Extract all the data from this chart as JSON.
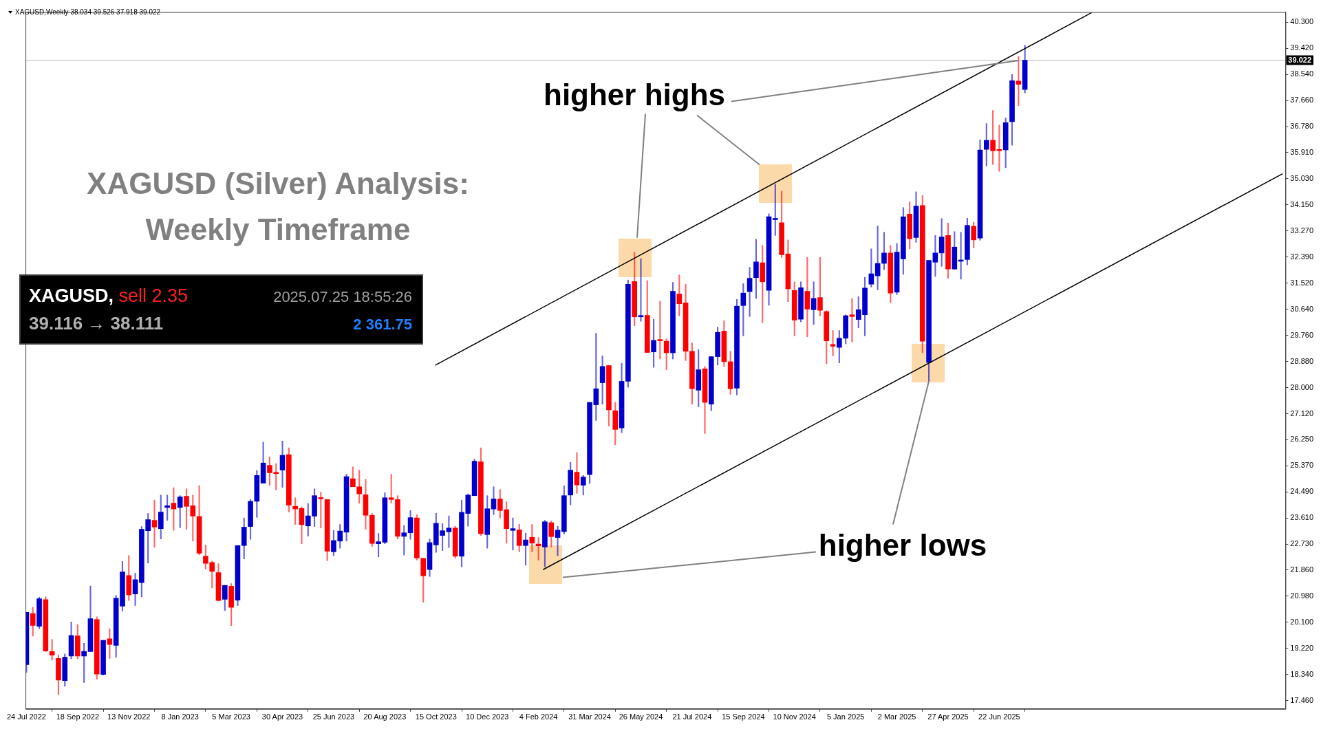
{
  "chart_data": {
    "type": "candlestick",
    "title": "XAGUSD (Silver) Analysis: Weekly Timeframe",
    "subtitle": "XAGUSD,Weekly 38.034 39.526 37.918 39.022",
    "annotations": [
      "XAGUSD,",
      "sell 2.35",
      "2025.07.25 18:55:26",
      "39.116 → 38.111",
      "2 361.75",
      {
        "text": "higher highs",
        "x": "2025-07-13",
        "y": 39.0
      },
      {
        "text": "higher lows",
        "x": "2025-04-06",
        "y": 28.21
      }
    ],
    "x": [
      "2022-07-24",
      "2022-07-31",
      "2022-08-07",
      "2022-08-14",
      "2022-08-21",
      "2022-08-28",
      "2022-09-04",
      "2022-09-11",
      "2022-09-18",
      "2022-09-25",
      "2022-10-02",
      "2022-10-09",
      "2022-10-16",
      "2022-10-23",
      "2022-10-30",
      "2022-11-06",
      "2022-11-13",
      "2022-11-20",
      "2022-11-27",
      "2022-12-04",
      "2022-12-11",
      "2022-12-18",
      "2022-12-25",
      "2023-01-01",
      "2023-01-08",
      "2023-01-15",
      "2023-01-22",
      "2023-01-29",
      "2023-02-05",
      "2023-02-12",
      "2023-02-19",
      "2023-02-26",
      "2023-03-05",
      "2023-03-12",
      "2023-03-19",
      "2023-03-26",
      "2023-04-02",
      "2023-04-09",
      "2023-04-16",
      "2023-04-23",
      "2023-04-30",
      "2023-05-07",
      "2023-05-14",
      "2023-05-21",
      "2023-05-28",
      "2023-06-04",
      "2023-06-11",
      "2023-06-18",
      "2023-06-25",
      "2023-07-02",
      "2023-07-09",
      "2023-07-16",
      "2023-07-23",
      "2023-07-30",
      "2023-08-06",
      "2023-08-13",
      "2023-08-20",
      "2023-08-27",
      "2023-09-03",
      "2023-09-10",
      "2023-09-17",
      "2023-09-24",
      "2023-10-01",
      "2023-10-08",
      "2023-10-15",
      "2023-10-22",
      "2023-10-29",
      "2023-11-05",
      "2023-11-12",
      "2023-11-19",
      "2023-11-26",
      "2023-12-03",
      "2023-12-10",
      "2023-12-17",
      "2023-12-24",
      "2023-12-31",
      "2024-01-07",
      "2024-01-14",
      "2024-01-21",
      "2024-01-28",
      "2024-02-04",
      "2024-02-11",
      "2024-02-18",
      "2024-02-25",
      "2024-03-03",
      "2024-03-10",
      "2024-03-17",
      "2024-03-24",
      "2024-03-31",
      "2024-04-07",
      "2024-04-14",
      "2024-04-21",
      "2024-04-28",
      "2024-05-05",
      "2024-05-12",
      "2024-05-19",
      "2024-05-26",
      "2024-06-02",
      "2024-06-09",
      "2024-06-16",
      "2024-06-23",
      "2024-06-30",
      "2024-07-07",
      "2024-07-14",
      "2024-07-21",
      "2024-07-28",
      "2024-08-04",
      "2024-08-11",
      "2024-08-18",
      "2024-08-25",
      "2024-09-01",
      "2024-09-08",
      "2024-09-15",
      "2024-09-22",
      "2024-09-29",
      "2024-10-06",
      "2024-10-13",
      "2024-10-20",
      "2024-10-27",
      "2024-11-03",
      "2024-11-10",
      "2024-11-17",
      "2024-11-24",
      "2024-12-01",
      "2024-12-08",
      "2024-12-15",
      "2024-12-22",
      "2024-12-29",
      "2025-01-05",
      "2025-01-12",
      "2025-01-19",
      "2025-01-26",
      "2025-02-02",
      "2025-02-09",
      "2025-02-16",
      "2025-02-23",
      "2025-03-02",
      "2025-03-09",
      "2025-03-16",
      "2025-03-23",
      "2025-03-30",
      "2025-04-06",
      "2025-04-13",
      "2025-04-20",
      "2025-04-27",
      "2025-05-04",
      "2025-05-11",
      "2025-05-18",
      "2025-05-25",
      "2025-06-01",
      "2025-06-08",
      "2025-06-15",
      "2025-06-22",
      "2025-06-29",
      "2025-07-06",
      "2025-07-13",
      "2025-07-20"
    ],
    "ohlc": [
      [
        18.67,
        20.43,
        18.41,
        20.43
      ],
      [
        20.39,
        20.6,
        19.63,
        19.99
      ],
      [
        19.96,
        20.94,
        19.88,
        20.89
      ],
      [
        20.86,
        20.96,
        19.11,
        19.13
      ],
      [
        19.11,
        19.52,
        18.82,
        18.99
      ],
      [
        18.88,
        18.99,
        17.65,
        18.15
      ],
      [
        18.13,
        19.03,
        17.94,
        18.92
      ],
      [
        18.96,
        20.11,
        18.87,
        19.65
      ],
      [
        19.64,
        20.02,
        18.87,
        18.96
      ],
      [
        18.96,
        19.39,
        18.07,
        19.12
      ],
      [
        19.11,
        21.32,
        19.11,
        20.22
      ],
      [
        20.19,
        20.28,
        18.18,
        18.35
      ],
      [
        18.34,
        19.49,
        18.32,
        19.49
      ],
      [
        19.54,
        19.88,
        18.88,
        19.35
      ],
      [
        19.32,
        21.0,
        18.92,
        20.91
      ],
      [
        20.64,
        22.15,
        20.47,
        21.79
      ],
      [
        21.67,
        22.34,
        20.83,
        21.02
      ],
      [
        21.05,
        21.75,
        20.66,
        21.53
      ],
      [
        21.43,
        23.32,
        20.95,
        23.23
      ],
      [
        23.18,
        23.76,
        22.09,
        23.55
      ],
      [
        23.53,
        24.21,
        22.62,
        23.3
      ],
      [
        23.25,
        24.38,
        22.9,
        23.81
      ],
      [
        23.96,
        24.38,
        23.53,
        24.02
      ],
      [
        24.11,
        24.63,
        23.19,
        23.91
      ],
      [
        23.96,
        24.36,
        23.28,
        24.32
      ],
      [
        24.34,
        24.59,
        23.23,
        24.0
      ],
      [
        24.02,
        24.38,
        22.83,
        23.67
      ],
      [
        23.66,
        24.7,
        22.37,
        22.42
      ],
      [
        22.32,
        22.7,
        21.89,
        22.08
      ],
      [
        22.11,
        22.16,
        21.25,
        21.81
      ],
      [
        21.77,
        22.07,
        20.81,
        20.83
      ],
      [
        20.87,
        21.34,
        20.49,
        21.34
      ],
      [
        21.31,
        21.4,
        19.98,
        20.6
      ],
      [
        20.84,
        22.68,
        20.66,
        22.68
      ],
      [
        22.68,
        23.61,
        22.23,
        23.3
      ],
      [
        23.32,
        24.23,
        22.89,
        24.17
      ],
      [
        24.17,
        25.21,
        23.63,
        25.04
      ],
      [
        24.78,
        26.16,
        24.78,
        25.46
      ],
      [
        25.38,
        25.67,
        24.7,
        25.13
      ],
      [
        25.13,
        25.44,
        24.55,
        25.1
      ],
      [
        25.22,
        26.2,
        24.64,
        25.72
      ],
      [
        25.74,
        25.97,
        23.81,
        24.04
      ],
      [
        24.0,
        24.29,
        23.39,
        23.91
      ],
      [
        23.93,
        23.98,
        22.74,
        23.38
      ],
      [
        23.34,
        24.1,
        23.0,
        23.68
      ],
      [
        23.67,
        24.59,
        23.32,
        24.36
      ],
      [
        24.29,
        24.48,
        23.27,
        24.25
      ],
      [
        24.23,
        24.23,
        22.17,
        22.49
      ],
      [
        22.47,
        23.19,
        22.34,
        22.85
      ],
      [
        22.83,
        23.39,
        22.59,
        23.17
      ],
      [
        23.13,
        25.08,
        22.83,
        25.0
      ],
      [
        24.93,
        25.33,
        24.66,
        24.66
      ],
      [
        24.66,
        25.22,
        24.1,
        24.42
      ],
      [
        24.39,
        24.91,
        23.23,
        23.7
      ],
      [
        23.7,
        23.76,
        22.65,
        22.75
      ],
      [
        22.74,
        23.09,
        22.3,
        22.81
      ],
      [
        22.79,
        24.46,
        22.74,
        24.29
      ],
      [
        24.29,
        25.08,
        24.11,
        24.23
      ],
      [
        24.23,
        24.36,
        22.9,
        22.99
      ],
      [
        22.99,
        23.36,
        22.36,
        23.11
      ],
      [
        23.11,
        23.86,
        22.89,
        23.62
      ],
      [
        23.61,
        23.72,
        22.19,
        22.26
      ],
      [
        22.25,
        22.25,
        20.77,
        21.66
      ],
      [
        21.87,
        22.9,
        21.64,
        22.78
      ],
      [
        22.7,
        23.77,
        22.45,
        23.43
      ],
      [
        23.02,
        23.42,
        22.51,
        23.18
      ],
      [
        23.14,
        23.68,
        22.61,
        23.27
      ],
      [
        23.27,
        23.33,
        22.26,
        22.32
      ],
      [
        22.32,
        24.21,
        21.96,
        23.8
      ],
      [
        23.76,
        24.42,
        23.33,
        24.38
      ],
      [
        24.36,
        25.59,
        24.36,
        25.52
      ],
      [
        25.5,
        25.97,
        23.02,
        23.08
      ],
      [
        23.05,
        24.36,
        22.59,
        23.92
      ],
      [
        23.91,
        24.66,
        23.72,
        24.25
      ],
      [
        24.25,
        24.57,
        23.61,
        23.86
      ],
      [
        23.89,
        24.16,
        22.76,
        23.25
      ],
      [
        23.19,
        23.61,
        22.53,
        23.25
      ],
      [
        23.21,
        23.4,
        22.47,
        22.68
      ],
      [
        22.68,
        23.1,
        22.02,
        22.87
      ],
      [
        22.96,
        23.39,
        22.47,
        22.76
      ],
      [
        22.73,
        22.95,
        22.19,
        22.67
      ],
      [
        22.63,
        23.53,
        21.96,
        23.48
      ],
      [
        23.45,
        23.51,
        22.63,
        22.98
      ],
      [
        22.95,
        23.33,
        22.34,
        23.2
      ],
      [
        23.15,
        24.69,
        23.07,
        24.36
      ],
      [
        24.38,
        25.48,
        24.05,
        25.22
      ],
      [
        25.15,
        25.81,
        24.44,
        24.72
      ],
      [
        24.71,
        25.04,
        24.38,
        24.99
      ],
      [
        25.07,
        27.5,
        24.77,
        27.5
      ],
      [
        27.42,
        29.83,
        26.89,
        27.96
      ],
      [
        28.16,
        29.07,
        27.44,
        28.71
      ],
      [
        28.74,
        28.74,
        26.7,
        27.25
      ],
      [
        27.22,
        27.5,
        26.07,
        26.59
      ],
      [
        26.64,
        28.82,
        26.48,
        28.21
      ],
      [
        28.21,
        31.62,
        28.01,
        31.48
      ],
      [
        31.57,
        32.56,
        30.08,
        30.38
      ],
      [
        30.38,
        32.34,
        30.23,
        30.41
      ],
      [
        30.43,
        31.6,
        29.18,
        29.18
      ],
      [
        29.2,
        30.3,
        28.68,
        29.59
      ],
      [
        29.59,
        30.91,
        28.96,
        29.57
      ],
      [
        29.56,
        29.64,
        28.6,
        29.17
      ],
      [
        29.17,
        31.54,
        28.96,
        31.24
      ],
      [
        31.15,
        31.79,
        30.41,
        30.82
      ],
      [
        30.85,
        31.48,
        28.91,
        29.22
      ],
      [
        29.22,
        29.5,
        27.44,
        27.96
      ],
      [
        27.91,
        29.28,
        27.35,
        28.6
      ],
      [
        28.63,
        28.71,
        26.45,
        27.5
      ],
      [
        27.44,
        29.04,
        27.22,
        29.04
      ],
      [
        29.04,
        30.03,
        28.76,
        29.86
      ],
      [
        29.9,
        30.25,
        28.71,
        28.87
      ],
      [
        28.87,
        29.22,
        27.77,
        27.96
      ],
      [
        27.98,
        30.97,
        27.75,
        30.74
      ],
      [
        30.76,
        31.5,
        29.74,
        31.18
      ],
      [
        31.23,
        32.05,
        30.39,
        31.68
      ],
      [
        31.7,
        32.99,
        31.0,
        32.23
      ],
      [
        32.2,
        32.79,
        30.18,
        31.56
      ],
      [
        31.27,
        33.85,
        30.77,
        33.75
      ],
      [
        33.65,
        34.84,
        33.12,
        33.69
      ],
      [
        33.55,
        34.61,
        32.38,
        32.47
      ],
      [
        32.5,
        32.97,
        30.89,
        31.32
      ],
      [
        31.27,
        31.56,
        29.74,
        30.27
      ],
      [
        30.3,
        31.56,
        30.21,
        31.36
      ],
      [
        31.24,
        32.38,
        29.71,
        30.64
      ],
      [
        30.62,
        31.56,
        30.12,
        31.0
      ],
      [
        31.03,
        32.38,
        30.41,
        30.6
      ],
      [
        30.56,
        30.59,
        28.8,
        29.57
      ],
      [
        29.45,
        29.92,
        29.06,
        29.39
      ],
      [
        29.35,
        29.92,
        28.83,
        29.66
      ],
      [
        29.66,
        30.45,
        29.47,
        30.42
      ],
      [
        30.45,
        31.0,
        29.54,
        30.39
      ],
      [
        30.29,
        31.06,
        30.01,
        30.62
      ],
      [
        30.45,
        31.71,
        29.74,
        31.35
      ],
      [
        31.48,
        32.67,
        31.38,
        31.83
      ],
      [
        31.76,
        33.44,
        31.29,
        32.18
      ],
      [
        32.18,
        33.23,
        31.97,
        32.53
      ],
      [
        32.53,
        32.79,
        30.86,
        31.18
      ],
      [
        31.21,
        32.85,
        31.13,
        32.56
      ],
      [
        32.33,
        34.06,
        31.81,
        33.75
      ],
      [
        33.84,
        34.25,
        32.67,
        33.01
      ],
      [
        33.05,
        34.59,
        32.89,
        34.11
      ],
      [
        34.13,
        34.47,
        29.17,
        29.56
      ],
      [
        28.84,
        32.28,
        28.21,
        32.28
      ],
      [
        32.22,
        33.12,
        31.74,
        32.53
      ],
      [
        32.53,
        33.69,
        32.08,
        33.07
      ],
      [
        33.12,
        33.54,
        31.68,
        31.99
      ],
      [
        31.99,
        33.25,
        31.97,
        32.73
      ],
      [
        32.25,
        33.23,
        31.65,
        32.28
      ],
      [
        32.31,
        33.7,
        32.13,
        33.46
      ],
      [
        33.43,
        33.57,
        32.7,
        32.97
      ],
      [
        33.03,
        36.34,
        32.96,
        36.0
      ],
      [
        36.02,
        36.89,
        35.46,
        36.32
      ],
      [
        36.32,
        37.33,
        35.51,
        35.97
      ],
      [
        36.0,
        36.83,
        35.28,
        35.97
      ],
      [
        36.0,
        37.08,
        35.4,
        36.92
      ],
      [
        36.95,
        38.54,
        36.16,
        38.33
      ],
      [
        38.32,
        39.14,
        37.49,
        38.21
      ],
      [
        38.034,
        39.526,
        37.918,
        39.022
      ]
    ],
    "colors": [
      "#0000cc",
      "#ff0000",
      "#0000cc",
      "#ff0000",
      "#ff0000",
      "#ff0000",
      "#0000cc",
      "#0000cc",
      "#ff0000",
      "#0000cc",
      "#0000cc",
      "#ff0000",
      "#0000cc",
      "#ff0000",
      "#0000cc",
      "#0000cc",
      "#ff0000",
      "#0000cc",
      "#0000cc",
      "#0000cc",
      "#ff0000",
      "#0000cc",
      "#0000cc",
      "#ff0000",
      "#0000cc",
      "#ff0000",
      "#ff0000",
      "#ff0000",
      "#ff0000",
      "#ff0000",
      "#ff0000",
      "#0000cc",
      "#ff0000",
      "#0000cc",
      "#0000cc",
      "#0000cc",
      "#0000cc",
      "#0000cc",
      "#ff0000",
      "#ff0000",
      "#0000cc",
      "#ff0000",
      "#ff0000",
      "#ff0000",
      "#0000cc",
      "#0000cc",
      "#ff0000",
      "#ff0000",
      "#0000cc",
      "#0000cc",
      "#0000cc",
      "#ff0000",
      "#ff0000",
      "#ff0000",
      "#ff0000",
      "#0000cc",
      "#0000cc",
      "#ff0000",
      "#ff0000",
      "#0000cc",
      "#0000cc",
      "#ff0000",
      "#ff0000",
      "#0000cc",
      "#0000cc",
      "#0000cc",
      "#0000cc",
      "#ff0000",
      "#0000cc",
      "#0000cc",
      "#0000cc",
      "#ff0000",
      "#0000cc",
      "#0000cc",
      "#ff0000",
      "#ff0000",
      "#0000cc",
      "#ff0000",
      "#0000cc",
      "#ff0000",
      "#ff0000",
      "#0000cc",
      "#ff0000",
      "#0000cc",
      "#0000cc",
      "#0000cc",
      "#ff0000",
      "#0000cc",
      "#0000cc",
      "#0000cc",
      "#0000cc",
      "#ff0000",
      "#ff0000",
      "#0000cc",
      "#0000cc",
      "#ff0000",
      "#0000cc",
      "#ff0000",
      "#0000cc",
      "#ff0000",
      "#ff0000",
      "#0000cc",
      "#ff0000",
      "#ff0000",
      "#ff0000",
      "#0000cc",
      "#ff0000",
      "#0000cc",
      "#0000cc",
      "#ff0000",
      "#ff0000",
      "#0000cc",
      "#0000cc",
      "#0000cc",
      "#0000cc",
      "#ff0000",
      "#0000cc",
      "#0000cc",
      "#ff0000",
      "#ff0000",
      "#ff0000",
      "#0000cc",
      "#ff0000",
      "#0000cc",
      "#ff0000",
      "#ff0000",
      "#ff0000",
      "#0000cc",
      "#0000cc",
      "#ff0000",
      "#0000cc",
      "#0000cc",
      "#0000cc",
      "#0000cc",
      "#0000cc",
      "#ff0000",
      "#0000cc",
      "#0000cc",
      "#ff0000",
      "#0000cc",
      "#ff0000",
      "#0000cc",
      "#0000cc",
      "#0000cc",
      "#ff0000",
      "#0000cc",
      "#0000cc",
      "#0000cc",
      "#ff0000",
      "#0000cc",
      "#0000cc",
      "#ff0000",
      "#ff0000",
      "#0000cc",
      "#0000cc",
      "#ff0000",
      "#0000cc"
    ],
    "series": [
      {
        "type": "line",
        "color": "#000000",
        "x": [
          "2023-10-14",
          "2025-10-01"
        ],
        "values": [
          28.75,
          40.62
        ]
      },
      {
        "type": "line",
        "color": "#000000",
        "x": [
          "2024-02-09",
          "2026-04-28"
        ],
        "values": [
          21.87,
          35.2
        ]
      }
    ],
    "ref_lines": [
      {
        "axis": "y",
        "value": 39.022,
        "label": "39.022",
        "color": "#b4bcc4"
      }
    ],
    "xlim": [
      "2022-07-23",
      "2026-05-01"
    ],
    "xticks": [
      {
        "value": "2022-07-24",
        "label": "24 Jul 2022"
      },
      {
        "value": "2022-09-18",
        "label": "18 Sep 2022"
      },
      {
        "value": "2022-11-13",
        "label": "13 Nov 2022"
      },
      {
        "value": "2023-01-08",
        "label": "8 Jan 2023"
      },
      {
        "value": "2023-03-05",
        "label": "5 Mar 2023"
      },
      {
        "value": "2023-04-30",
        "label": "30 Apr 2023"
      },
      {
        "value": "2023-06-25",
        "label": "25 Jun 2023"
      },
      {
        "value": "2023-08-20",
        "label": "20 Aug 2023"
      },
      {
        "value": "2023-10-15",
        "label": "15 Oct 2023"
      },
      {
        "value": "2023-12-10",
        "label": "10 Dec 2023"
      },
      {
        "value": "2024-02-04",
        "label": "4 Feb 2024"
      },
      {
        "value": "2024-03-31",
        "label": "31 Mar 2024"
      },
      {
        "value": "2024-05-26",
        "label": "26 May 2024"
      },
      {
        "value": "2024-07-21",
        "label": "21 Jul 2024"
      },
      {
        "value": "2024-09-15",
        "label": "15 Sep 2024"
      },
      {
        "value": "2024-11-10",
        "label": "10 Nov 2024"
      },
      {
        "value": "2025-01-05",
        "label": "5 Jan 2025"
      },
      {
        "value": "2025-03-02",
        "label": "2 Mar 2025"
      },
      {
        "value": "2025-04-27",
        "label": "27 Apr 2025"
      },
      {
        "value": "2025-06-22",
        "label": "22 Jun 2025"
      }
    ],
    "ylim": [
      17.18,
      40.64
    ],
    "yticks": [
      {
        "value": 17.46,
        "label": "17.460"
      },
      {
        "value": 18.34,
        "label": "18.340"
      },
      {
        "value": 19.22,
        "label": "19.220"
      },
      {
        "value": 20.1,
        "label": "20.100"
      },
      {
        "value": 20.98,
        "label": "20.980"
      },
      {
        "value": 21.86,
        "label": "21.860"
      },
      {
        "value": 22.73,
        "label": "22.730"
      },
      {
        "value": 23.61,
        "label": "23.610"
      },
      {
        "value": 24.49,
        "label": "24.490"
      },
      {
        "value": 25.37,
        "label": "25.370"
      },
      {
        "value": 26.25,
        "label": "26.250"
      },
      {
        "value": 27.12,
        "label": "27.120"
      },
      {
        "value": 28.0,
        "label": "28.000"
      },
      {
        "value": 28.88,
        "label": "28.880"
      },
      {
        "value": 29.76,
        "label": "29.760"
      },
      {
        "value": 30.64,
        "label": "30.640"
      },
      {
        "value": 31.52,
        "label": "31.520"
      },
      {
        "value": 32.39,
        "label": "32.390"
      },
      {
        "value": 33.27,
        "label": "33.270"
      },
      {
        "value": 34.15,
        "label": "34.150"
      },
      {
        "value": 35.03,
        "label": "35.030"
      },
      {
        "value": 35.91,
        "label": "35.910"
      },
      {
        "value": 36.78,
        "label": "36.780"
      },
      {
        "value": 37.66,
        "label": "37.660"
      },
      {
        "value": 38.54,
        "label": "38.540"
      },
      {
        "value": 39.42,
        "label": "39.420"
      },
      {
        "value": 40.3,
        "label": "40.300"
      }
    ]
  }
}
